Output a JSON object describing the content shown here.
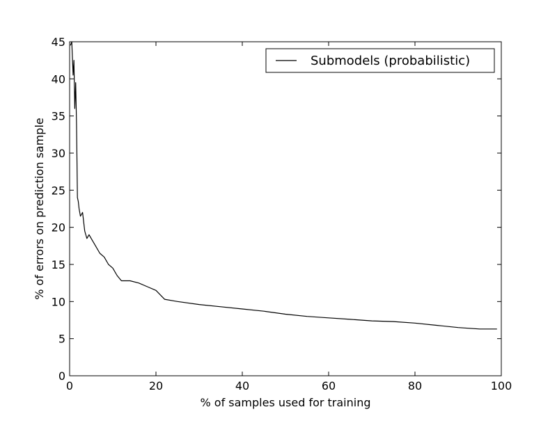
{
  "chart_data": {
    "type": "line",
    "title": "",
    "xlabel": "% of samples used for training",
    "ylabel": "% of errors on prediction sample",
    "xlim": [
      0,
      100
    ],
    "ylim": [
      0,
      45
    ],
    "x_ticks": [
      "0",
      "20",
      "40",
      "60",
      "80",
      "100"
    ],
    "y_ticks": [
      "0",
      "5",
      "10",
      "15",
      "20",
      "25",
      "30",
      "35",
      "40",
      "45"
    ],
    "grid": false,
    "legend_position": "top-right",
    "series": [
      {
        "name": "Submodels (probabilistic)",
        "color": "#000000",
        "x": [
          0.2,
          0.5,
          0.8,
          1.0,
          1.2,
          1.4,
          1.6,
          1.8,
          2.0,
          2.2,
          2.5,
          3.0,
          3.5,
          4.0,
          4.5,
          5.0,
          6.0,
          7.0,
          8.0,
          9.0,
          10.0,
          11.0,
          12.0,
          14.0,
          16.0,
          18.0,
          20.0,
          22.0,
          25.0,
          30.0,
          35.0,
          40.0,
          45.0,
          50.0,
          55.0,
          60.0,
          65.0,
          70.0,
          75.0,
          80.0,
          85.0,
          90.0,
          95.0,
          99.0
        ],
        "y": [
          44.5,
          45.0,
          40.5,
          42.5,
          36.0,
          39.5,
          34.0,
          24.0,
          23.5,
          22.5,
          21.5,
          22.0,
          19.5,
          18.5,
          19.0,
          18.5,
          17.5,
          16.5,
          16.0,
          15.0,
          14.5,
          13.5,
          12.8,
          12.8,
          12.5,
          12.0,
          11.5,
          10.3,
          10.0,
          9.6,
          9.3,
          9.0,
          8.7,
          8.3,
          8.0,
          7.8,
          7.6,
          7.4,
          7.3,
          7.1,
          6.8,
          6.5,
          6.3,
          6.3
        ]
      }
    ]
  }
}
